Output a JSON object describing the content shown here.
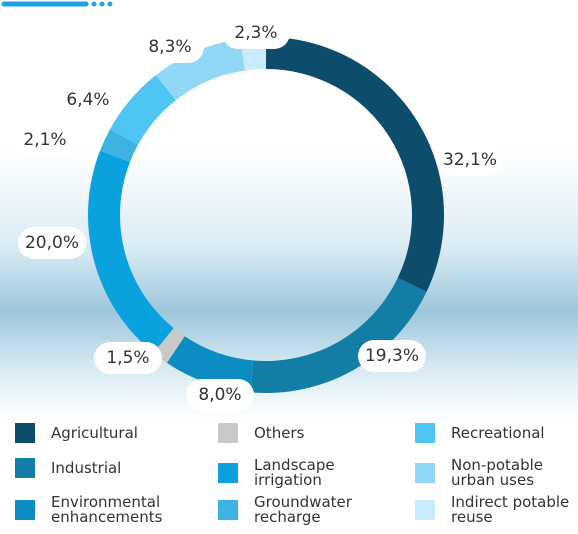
{
  "chart_data": {
    "type": "donut",
    "categories": [
      "Agricultural",
      "Industrial",
      "Environmental enhancements",
      "Others",
      "Landscape irrigation",
      "Groundwater recharge",
      "Recreational",
      "Non-potable urban uses",
      "Indirect potable reuse"
    ],
    "values": [
      32.1,
      19.3,
      8.0,
      1.5,
      20.0,
      2.1,
      6.4,
      8.3,
      2.3
    ],
    "value_labels": [
      "32,1%",
      "19,3%",
      "8,0%",
      "1,5%",
      "20,0%",
      "2,1%",
      "6,4%",
      "8,3%",
      "2,3%"
    ],
    "colors": [
      "#0d4d6b",
      "#127ea6",
      "#0b8dc3",
      "#c9c9c9",
      "#0aa2de",
      "#3db3e3",
      "#4fc5f3",
      "#90d8f6",
      "#c8ecfb"
    ]
  }
}
